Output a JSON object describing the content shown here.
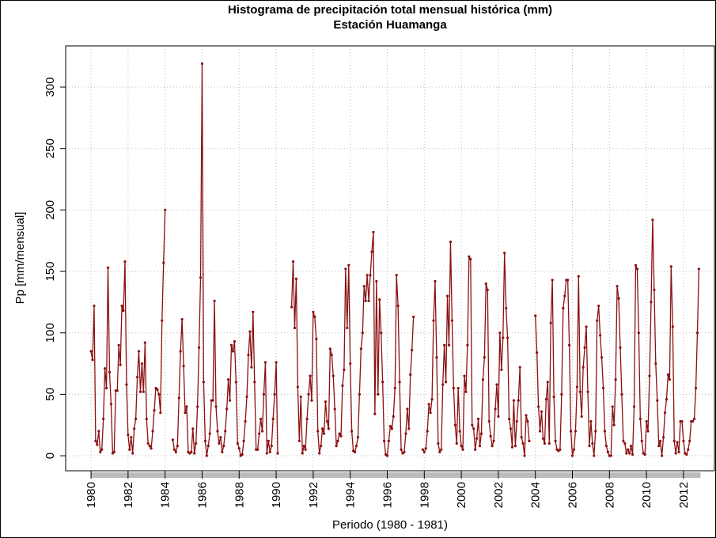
{
  "chart_data": {
    "type": "line",
    "title": "Histograma de precipitación total mensual histórica (mm)",
    "subtitle": "Estación Huamanga",
    "x_label": "Periodo (1980 - 1981)",
    "y_label": "Pp [mm/mensual]",
    "xlim": [
      1978.63,
      2013.67
    ],
    "ylim": [
      -12.2,
      333.5
    ],
    "xticks": [
      1980,
      1982,
      1984,
      1986,
      1988,
      1990,
      1992,
      1994,
      1996,
      1998,
      2000,
      2002,
      2004,
      2006,
      2008,
      2010,
      2012
    ],
    "yticks": [
      0,
      50,
      100,
      150,
      200,
      250,
      300
    ],
    "grid": true,
    "series": [
      {
        "color": "#8b1010",
        "x": [
          1980,
          1980.083,
          1980.167,
          1980.25,
          1980.333,
          1980.417,
          1980.5,
          1980.583,
          1980.667,
          1980.75,
          1980.833,
          1980.917,
          1981,
          1981.083,
          1981.167,
          1981.25,
          1981.333,
          1981.417,
          1981.5,
          1981.583,
          1981.667,
          1981.75,
          1981.833,
          1981.917,
          1982,
          1982.083,
          1982.167,
          1982.25,
          1982.333,
          1982.417,
          1982.5,
          1982.583,
          1982.667,
          1982.75,
          1982.833,
          1982.917,
          1983,
          1983.083,
          1983.167,
          1983.25,
          1983.333,
          1983.417,
          1983.5,
          1983.583,
          1983.667,
          1983.75,
          1983.833,
          1983.917,
          1984,
          1984.083,
          1984.167,
          1984.25,
          1984.333,
          1984.417,
          1984.5,
          1984.583,
          1984.667,
          1984.75,
          1984.833,
          1984.917,
          1985,
          1985.083,
          1985.167,
          1985.25,
          1985.333,
          1985.417,
          1985.5,
          1985.583,
          1985.667,
          1985.75,
          1985.833,
          1985.917,
          1986,
          1986.083,
          1986.167,
          1986.25,
          1986.333,
          1986.417,
          1986.5,
          1986.583,
          1986.667,
          1986.75,
          1986.833,
          1986.917,
          1987,
          1987.083,
          1987.167,
          1987.25,
          1987.333,
          1987.417,
          1987.5,
          1987.583,
          1987.667,
          1987.75,
          1987.833,
          1987.917,
          1988,
          1988.083,
          1988.167,
          1988.25,
          1988.333,
          1988.417,
          1988.5,
          1988.583,
          1988.667,
          1988.75,
          1988.833,
          1988.917,
          1989,
          1989.083,
          1989.167,
          1989.25,
          1989.333,
          1989.417,
          1989.5,
          1989.583,
          1989.667,
          1989.75,
          1989.833,
          1989.917,
          1990,
          1990.083,
          1990.167,
          1990.25,
          1990.333,
          1990.417,
          1990.5,
          1990.583,
          1990.667,
          1990.75,
          1990.833,
          1990.917,
          1991,
          1991.083,
          1991.167,
          1991.25,
          1991.333,
          1991.417,
          1991.5,
          1991.583,
          1991.667,
          1991.75,
          1991.833,
          1991.917,
          1992,
          1992.083,
          1992.167,
          1992.25,
          1992.333,
          1992.417,
          1992.5,
          1992.583,
          1992.667,
          1992.75,
          1992.833,
          1992.917,
          1993,
          1993.083,
          1993.167,
          1993.25,
          1993.333,
          1993.417,
          1993.5,
          1993.583,
          1993.667,
          1993.75,
          1993.833,
          1993.917,
          1994,
          1994.083,
          1994.167,
          1994.25,
          1994.333,
          1994.417,
          1994.5,
          1994.583,
          1994.667,
          1994.75,
          1994.833,
          1994.917,
          1995,
          1995.083,
          1995.167,
          1995.25,
          1995.333,
          1995.417,
          1995.5,
          1995.583,
          1995.667,
          1995.75,
          1995.833,
          1995.917,
          1996,
          1996.083,
          1996.167,
          1996.25,
          1996.333,
          1996.417,
          1996.5,
          1996.583,
          1996.667,
          1996.75,
          1996.833,
          1996.917,
          1997,
          1997.083,
          1997.167,
          1997.25,
          1997.333,
          1997.417,
          1997.5,
          1997.583,
          1997.667,
          1997.75,
          1997.833,
          1997.917,
          1998,
          1998.083,
          1998.167,
          1998.25,
          1998.333,
          1998.417,
          1998.5,
          1998.583,
          1998.667,
          1998.75,
          1998.833,
          1998.917,
          1999,
          1999.083,
          1999.167,
          1999.25,
          1999.333,
          1999.417,
          1999.5,
          1999.583,
          1999.667,
          1999.75,
          1999.833,
          1999.917,
          2000,
          2000.083,
          2000.167,
          2000.25,
          2000.333,
          2000.417,
          2000.5,
          2000.583,
          2000.667,
          2000.75,
          2000.833,
          2000.917,
          2001,
          2001.083,
          2001.167,
          2001.25,
          2001.333,
          2001.417,
          2001.5,
          2001.583,
          2001.667,
          2001.75,
          2001.833,
          2001.917,
          2002,
          2002.083,
          2002.167,
          2002.25,
          2002.333,
          2002.417,
          2002.5,
          2002.583,
          2002.667,
          2002.75,
          2002.833,
          2002.917,
          2003,
          2003.083,
          2003.167,
          2003.25,
          2003.333,
          2003.417,
          2003.5,
          2003.583,
          2003.667,
          2003.75,
          2003.833,
          2003.917,
          2004,
          2004.083,
          2004.167,
          2004.25,
          2004.333,
          2004.417,
          2004.5,
          2004.583,
          2004.667,
          2004.75,
          2004.833,
          2004.917,
          2005,
          2005.083,
          2005.167,
          2005.25,
          2005.333,
          2005.417,
          2005.5,
          2005.583,
          2005.667,
          2005.75,
          2005.833,
          2005.917,
          2006,
          2006.083,
          2006.167,
          2006.25,
          2006.333,
          2006.417,
          2006.5,
          2006.583,
          2006.667,
          2006.75,
          2006.833,
          2006.917,
          2007,
          2007.083,
          2007.167,
          2007.25,
          2007.333,
          2007.417,
          2007.5,
          2007.583,
          2007.667,
          2007.75,
          2007.833,
          2007.917,
          2008,
          2008.083,
          2008.167,
          2008.25,
          2008.333,
          2008.417,
          2008.5,
          2008.583,
          2008.667,
          2008.75,
          2008.833,
          2008.917,
          2009,
          2009.083,
          2009.167,
          2009.25,
          2009.333,
          2009.417,
          2009.5,
          2009.583,
          2009.667,
          2009.75,
          2009.833,
          2009.917,
          2010,
          2010.083,
          2010.167,
          2010.25,
          2010.333,
          2010.417,
          2010.5,
          2010.583,
          2010.667,
          2010.75,
          2010.833,
          2010.917,
          2011,
          2011.083,
          2011.167,
          2011.25,
          2011.333,
          2011.417,
          2011.5,
          2011.583,
          2011.667,
          2011.75,
          2011.833,
          2011.917,
          2012,
          2012.083,
          2012.167,
          2012.25,
          2012.333,
          2012.417,
          2012.5,
          2012.583,
          2012.667,
          2012.75,
          2012.833,
          2012.917
        ],
        "values": [
          85,
          78,
          122,
          12,
          9,
          20,
          3,
          5,
          30,
          71,
          55,
          153,
          68,
          42,
          2,
          3,
          53,
          53,
          90,
          74,
          122,
          118,
          158,
          58,
          17,
          5,
          15,
          2,
          22,
          30,
          64,
          85,
          52,
          75,
          52,
          92,
          30,
          10,
          8,
          6,
          20,
          37,
          55,
          54,
          50,
          35,
          110,
          157,
          200,
          null,
          null,
          null,
          null,
          13,
          5,
          3,
          8,
          47,
          85,
          111,
          73,
          35,
          40,
          3,
          2,
          3,
          22,
          2,
          10,
          40,
          88,
          145,
          319,
          60,
          12,
          0,
          8,
          18,
          45,
          45,
          126,
          40,
          20,
          10,
          15,
          3,
          8,
          20,
          38,
          62,
          45,
          90,
          85,
          93,
          60,
          10,
          6,
          0,
          1,
          12,
          28,
          48,
          82,
          101,
          72,
          117,
          60,
          5,
          5,
          18,
          30,
          20,
          50,
          76,
          2,
          12,
          3,
          8,
          30,
          50,
          76,
          2,
          null,
          null,
          null,
          null,
          null,
          null,
          null,
          null,
          121,
          158,
          104,
          144,
          56,
          12,
          48,
          2,
          8,
          5,
          30,
          50,
          65,
          45,
          117,
          113,
          95,
          20,
          2,
          8,
          22,
          18,
          44,
          28,
          22,
          87,
          82,
          65,
          38,
          8,
          12,
          18,
          16,
          57,
          70,
          152,
          104,
          155,
          75,
          20,
          4,
          3,
          8,
          15,
          50,
          87,
          100,
          138,
          126,
          147,
          126,
          147,
          166,
          182,
          34,
          142,
          50,
          127,
          100,
          60,
          12,
          1,
          0,
          12,
          24,
          22,
          32,
          55,
          147,
          122,
          60,
          5,
          2,
          3,
          18,
          38,
          22,
          66,
          86,
          113,
          null,
          null,
          null,
          null,
          null,
          5,
          3,
          6,
          20,
          42,
          35,
          46,
          110,
          142,
          80,
          10,
          3,
          5,
          58,
          90,
          60,
          130,
          90,
          174,
          110,
          55,
          25,
          10,
          55,
          20,
          8,
          5,
          65,
          52,
          90,
          162,
          160,
          25,
          22,
          5,
          14,
          30,
          8,
          18,
          62,
          80,
          140,
          135,
          28,
          16,
          8,
          12,
          38,
          58,
          32,
          100,
          70,
          96,
          165,
          120,
          96,
          30,
          22,
          7,
          45,
          8,
          28,
          45,
          72,
          15,
          10,
          0,
          33,
          28,
          12,
          null,
          null,
          null,
          114,
          84,
          40,
          20,
          36,
          14,
          10,
          46,
          60,
          10,
          108,
          143,
          48,
          12,
          5,
          4,
          5,
          50,
          120,
          130,
          143,
          143,
          90,
          20,
          0,
          5,
          20,
          56,
          146,
          52,
          32,
          72,
          88,
          105,
          52,
          8,
          28,
          10,
          0,
          20,
          110,
          122,
          98,
          80,
          55,
          20,
          8,
          3,
          0,
          0,
          40,
          25,
          62,
          138,
          128,
          88,
          50,
          12,
          10,
          2,
          5,
          2,
          8,
          1,
          40,
          155,
          152,
          100,
          30,
          12,
          2,
          1,
          28,
          20,
          65,
          125,
          192,
          135,
          75,
          45,
          8,
          12,
          0,
          15,
          35,
          46,
          66,
          62,
          154,
          105,
          12,
          2,
          11,
          3,
          28,
          28,
          12,
          2,
          1,
          5,
          12,
          28,
          28,
          30,
          55,
          100,
          152,
          null
        ]
      }
    ]
  }
}
